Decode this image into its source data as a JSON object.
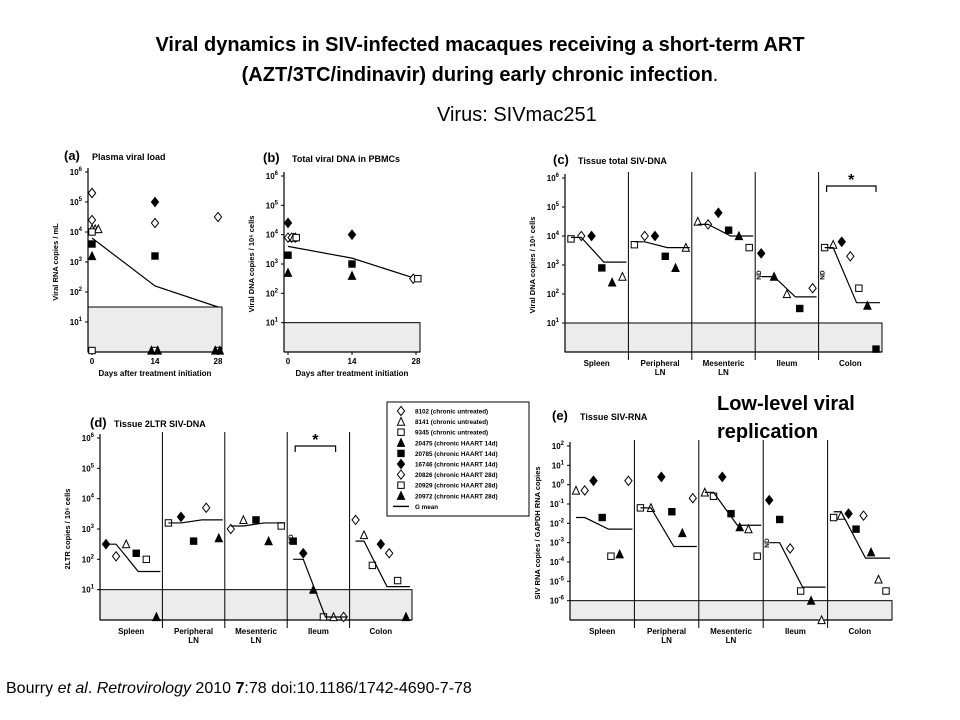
{
  "title_line1": "Viral dynamics in SIV-infected macaques receiving a short-term ART",
  "title_line2": "(AZT/3TC/indinavir) during early chronic infection",
  "title_dot": ".",
  "virus_label": "Virus: SIVmac251",
  "note_line1": "Low-level viral",
  "note_line2": "replication",
  "citation": {
    "authors": "Bourry ",
    "etal": "et al",
    "sep1": ". ",
    "journal": "Retrovirology",
    "year": " 2010 ",
    "volume": "7",
    "pages": ":78   ",
    "doi": "doi:10.1186/1742-4690-7-78"
  },
  "legend": {
    "entries": [
      {
        "symbol": "open-diamond",
        "label": "8102 (chronic untreated)"
      },
      {
        "symbol": "open-triangle",
        "label": "8141 (chronic untreated)"
      },
      {
        "symbol": "open-square",
        "label": "9345 (chronic untreated)"
      },
      {
        "symbol": "filled-triangle",
        "label": "20475 (chronic HAART 14d)"
      },
      {
        "symbol": "filled-square",
        "label": "20785 (chronic HAART 14d)"
      },
      {
        "symbol": "filled-diamond",
        "label": "16746 (chronic HAART 14d)"
      },
      {
        "symbol": "open-diamond",
        "label": "20826 (chronic HAART 28d)"
      },
      {
        "symbol": "open-square",
        "label": "20929 (chronic HAART 28d)"
      },
      {
        "symbol": "filled-triangle",
        "label": "20972 (chronic HAART 28d)"
      },
      {
        "symbol": "line",
        "label": "G mean"
      }
    ]
  },
  "chart_data": [
    {
      "panel": "(a)",
      "type": "scatter",
      "title": "Plasma viral load",
      "ylabel": "Viral RNA copies / mL",
      "xlabel": "Days after treatment initiation",
      "scale": "log",
      "ylim_exp": [
        0,
        6
      ],
      "ytick_exps": [
        1,
        2,
        3,
        4,
        5,
        6
      ],
      "x_ticks": [
        "0",
        "14",
        "28"
      ],
      "x_values": [
        0,
        14,
        28
      ],
      "shaded_below_exp": 1.5,
      "series": [
        {
          "symbol": "filled-diamond",
          "points": [
            [
              0,
              5.3
            ],
            [
              14,
              5.0
            ]
          ]
        },
        {
          "symbol": "open-diamond",
          "points": [
            [
              0,
              5.3
            ],
            [
              0,
              4.4
            ],
            [
              14,
              4.3
            ],
            [
              28,
              4.5
            ]
          ]
        },
        {
          "symbol": "open-triangle",
          "points": [
            [
              0,
              4.1
            ],
            [
              0.7,
              4.1
            ],
            [
              1.4,
              4.1
            ]
          ]
        },
        {
          "symbol": "open-square",
          "points": [
            [
              0,
              4.0
            ],
            [
              0,
              0.05
            ],
            [
              14,
              0.05
            ],
            [
              28,
              0.05
            ]
          ]
        },
        {
          "symbol": "filled-square",
          "points": [
            [
              0,
              3.6
            ],
            [
              14,
              3.2
            ]
          ]
        },
        {
          "symbol": "filled-triangle",
          "points": [
            [
              0,
              3.2
            ]
          ]
        },
        {
          "symbol": "filled-triangle",
          "points": [
            [
              13.2,
              0.05
            ],
            [
              14.6,
              0.05
            ],
            [
              27.4,
              0.05
            ],
            [
              28.4,
              0.05
            ]
          ]
        }
      ],
      "gmean": [
        [
          0,
          3.8
        ],
        [
          14,
          2.2
        ],
        [
          28,
          1.5
        ]
      ]
    },
    {
      "panel": "(b)",
      "type": "scatter",
      "title": "Total viral DNA in PBMCs",
      "ylabel": "Viral DNA copies / 10⁶ cells",
      "xlabel": "Days after treatment initiation",
      "scale": "log",
      "ylim_exp": [
        0,
        6
      ],
      "ytick_exps": [
        1,
        2,
        3,
        4,
        5,
        6
      ],
      "x_ticks": [
        "0",
        "14",
        "28"
      ],
      "x_values": [
        0,
        14,
        28
      ],
      "shaded_below_exp": 1.0,
      "series": [
        {
          "symbol": "filled-diamond",
          "points": [
            [
              0,
              4.4
            ],
            [
              14,
              4.0
            ]
          ]
        },
        {
          "symbol": "open-diamond",
          "points": [
            [
              0,
              3.9
            ],
            [
              0.8,
              3.9
            ],
            [
              1.6,
              3.9
            ],
            [
              27.4,
              2.5
            ]
          ]
        },
        {
          "symbol": "open-triangle",
          "points": [
            [
              1.2,
              3.9
            ]
          ]
        },
        {
          "symbol": "open-square",
          "points": [
            [
              1.8,
              3.9
            ],
            [
              28.4,
              2.5
            ]
          ]
        },
        {
          "symbol": "filled-square",
          "points": [
            [
              0,
              3.3
            ],
            [
              14,
              3.0
            ]
          ]
        },
        {
          "symbol": "filled-triangle",
          "points": [
            [
              0,
              2.7
            ],
            [
              14,
              2.6
            ]
          ]
        }
      ],
      "gmean": [
        [
          0,
          3.6
        ],
        [
          14,
          3.2
        ],
        [
          28,
          2.5
        ]
      ]
    },
    {
      "panel": "(c)",
      "type": "scatter",
      "title": "Tissue total SIV-DNA",
      "ylabel": "Viral DNA copies / 10⁶ cells",
      "scale": "log",
      "ylim_exp": [
        0,
        6
      ],
      "ytick_exps": [
        1,
        2,
        3,
        4,
        5,
        6
      ],
      "categories": [
        "Spleen",
        "Peripheral\nLN",
        "Mesenteric\nLN",
        "Ileum",
        "Colon"
      ],
      "shaded_below_exp": 1.0,
      "nd_labels": [
        "ND",
        "ND"
      ],
      "significance": "*",
      "series": [
        {
          "category": "Spleen",
          "values": {
            "open-square": 3.9,
            "open-diamond": 4.0,
            "filled-diamond": 4.0,
            "filled-square": 2.9,
            "filled-triangle": 2.4,
            "open-triangle": 2.6
          },
          "gmean": [
            3.95,
            3.1
          ]
        },
        {
          "category": "Peripheral\nLN",
          "values": {
            "open-square": 3.7,
            "open-diamond": 4.0,
            "filled-diamond": 4.0,
            "filled-square": 3.3,
            "filled-triangle": 2.9,
            "open-triangle": 3.6
          },
          "gmean": [
            3.8,
            3.6
          ]
        },
        {
          "category": "Mesenteric\nLN",
          "values": {
            "open-triangle": 4.5,
            "open-diamond": 4.4,
            "filled-diamond": 4.8,
            "filled-square": 4.2,
            "filled-triangle": 4.0,
            "open-square": 3.6
          },
          "gmean": [
            4.4,
            4.0
          ]
        },
        {
          "category": "Ileum",
          "values": {
            "filled-diamond": 3.4,
            "filled-triangle": 2.6,
            "open-triangle": 2.0,
            "filled-square": 1.5,
            "open-diamond": 2.2
          },
          "gmean": [
            2.6,
            1.9
          ]
        },
        {
          "category": "Colon",
          "values": {
            "open-square": 3.6,
            "open-triangle": 3.7,
            "filled-diamond": 3.8,
            "open-diamond": 3.3,
            "open-square-2": 2.2,
            "filled-triangle": 1.6,
            "filled-square": 0.1
          },
          "gmean": [
            3.6,
            1.7
          ]
        }
      ]
    },
    {
      "panel": "(d)",
      "type": "scatter",
      "title": "Tissue 2LTR SIV-DNA",
      "ylabel": "2LTR copies / 10⁶ cells",
      "scale": "log",
      "ylim_exp": [
        0,
        6
      ],
      "ytick_exps": [
        1,
        2,
        3,
        4,
        5,
        6
      ],
      "categories": [
        "Spleen",
        "Peripheral\nLN",
        "Mesenteric\nLN",
        "Ileum",
        "Colon"
      ],
      "shaded_below_exp": 1.0,
      "nd_labels": [
        "ND"
      ],
      "significance": "*",
      "series": [
        {
          "category": "Spleen",
          "values": {
            "filled-diamond": 2.5,
            "open-diamond": 2.1,
            "open-triangle": 2.5,
            "filled-square": 2.2,
            "open-square": 2.0,
            "filled-triangle": 0.1
          },
          "gmean": [
            2.5,
            1.6
          ]
        },
        {
          "category": "Peripheral\nLN",
          "values": {
            "open-square": 3.2,
            "filled-diamond": 3.4,
            "filled-square": 2.6,
            "open-diamond": 3.7,
            "filled-triangle": 2.7
          },
          "gmean": [
            3.2,
            3.3
          ]
        },
        {
          "category": "Mesenteric\nLN",
          "values": {
            "open-diamond": 3.0,
            "open-triangle": 3.3,
            "filled-square": 3.3,
            "filled-triangle": 2.6,
            "open-square": 3.1
          },
          "gmean": [
            3.1,
            3.2
          ]
        },
        {
          "category": "Ileum",
          "values": {
            "filled-square": 2.6,
            "filled-diamond": 2.2,
            "filled-triangle": 1.0,
            "open-square": 0.1,
            "open-triangle": 0.1,
            "open-diamond": 0.1
          },
          "gmean": [
            2.0,
            0.1
          ]
        },
        {
          "category": "Colon",
          "values": {
            "open-diamond": 3.3,
            "open-triangle": 2.8,
            "open-square": 1.8,
            "filled-diamond": 2.5,
            "open-diamond-2": 2.2,
            "open-square-2": 1.3,
            "filled-triangle": 0.1
          },
          "gmean": [
            2.6,
            1.1
          ]
        }
      ]
    },
    {
      "panel": "(e)",
      "type": "scatter",
      "title": "Tissue SIV-RNA",
      "ylabel": "SIV RNA copies / GAPDH RNA copies",
      "scale": "log",
      "ylim_exp": [
        -7,
        2
      ],
      "ytick_exps": [
        -6,
        -5,
        -4,
        -3,
        -2,
        -1,
        0,
        1,
        2
      ],
      "categories": [
        "Spleen",
        "Peripheral\nLN",
        "Mesenteric\nLN",
        "Ileum",
        "Colon"
      ],
      "shaded_below_exp": -6.0,
      "nd_labels": [
        "ND"
      ],
      "series": [
        {
          "category": "Spleen",
          "values": {
            "open-triangle": -0.3,
            "open-diamond": -0.3,
            "filled-diamond": 0.2,
            "filled-square": -1.7,
            "open-square": -3.7,
            "filled-triangle": -3.6,
            "open-diamond-2": 0.2
          },
          "gmean": [
            -1.7,
            -2.3
          ]
        },
        {
          "category": "Peripheral\nLN",
          "values": {
            "open-square": -1.2,
            "open-triangle": -1.2,
            "filled-diamond": 0.4,
            "filled-square": -1.4,
            "filled-triangle": -2.5,
            "open-diamond": -0.7
          },
          "gmean": [
            -1.2,
            -3.2
          ]
        },
        {
          "category": "Mesenteric\nLN",
          "values": {
            "open-triangle": -0.4,
            "open-square": -0.6,
            "filled-diamond": 0.4,
            "filled-square": -1.5,
            "filled-triangle": -2.2,
            "open-triangle-2": -2.3,
            "open-square-2": -3.7
          },
          "gmean": [
            -0.4,
            -2.1
          ]
        },
        {
          "category": "Ileum",
          "values": {
            "filled-diamond": -0.8,
            "filled-square": -1.8,
            "open-diamond": -3.3,
            "open-square": -5.5,
            "filled-triangle": -6.0,
            "open-triangle": -7.0
          },
          "gmean": [
            -3.0,
            -5.3
          ]
        },
        {
          "category": "Colon",
          "values": {
            "open-square": -1.7,
            "open-triangle": -1.6,
            "filled-diamond": -1.5,
            "filled-square": -2.3,
            "open-diamond": -1.6,
            "filled-triangle": -3.5,
            "open-triangle-2": -4.9,
            "open-square-2": -5.5
          },
          "gmean": [
            -1.4,
            -3.8
          ]
        }
      ]
    }
  ]
}
